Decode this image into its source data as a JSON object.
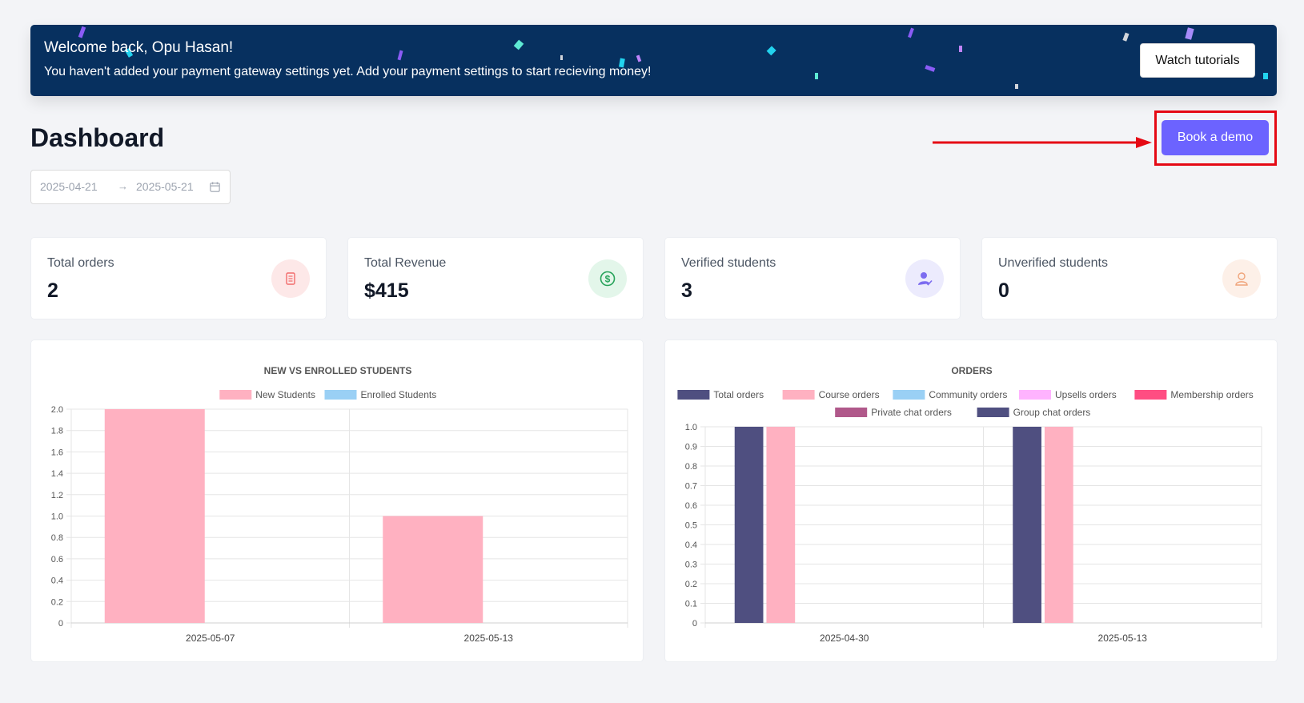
{
  "banner": {
    "greeting": "Welcome back, Opu Hasan!",
    "message": "You haven't added your payment gateway settings yet. Add your payment settings to start recieving money!",
    "watch_label": "Watch tutorials"
  },
  "page": {
    "title": "Dashboard",
    "demo_label": "Book a demo"
  },
  "date_range": {
    "start": "2025-04-21",
    "separator": "→",
    "end": "2025-05-21"
  },
  "stats": [
    {
      "label": "Total orders",
      "value": "2",
      "icon": "receipt-icon",
      "color": "#f26c6c"
    },
    {
      "label": "Total Revenue",
      "value": "$415",
      "icon": "dollar-icon",
      "color": "#27a35a"
    },
    {
      "label": "Verified students",
      "value": "3",
      "icon": "verified-user-icon",
      "color": "#7c6cf0"
    },
    {
      "label": "Unverified students",
      "value": "0",
      "icon": "user-icon",
      "color": "#f0a47a"
    }
  ],
  "colors": {
    "banner_bg": "#07305f",
    "accent": "#6c63ff",
    "highlight": "#e50914"
  },
  "chart_data": [
    {
      "type": "bar",
      "title": "NEW VS ENROLLED STUDENTS",
      "categories": [
        "2025-05-07",
        "2025-05-13"
      ],
      "series": [
        {
          "name": "New Students",
          "values": [
            2,
            1
          ],
          "color": "#ffb1c1"
        },
        {
          "name": "Enrolled Students",
          "values": [
            0,
            0
          ],
          "color": "#9ad0f5"
        }
      ],
      "ylim": [
        0,
        2
      ],
      "ystep": 0.2,
      "yticks": [
        "0",
        "0.2",
        "0.4",
        "0.6",
        "0.8",
        "1.0",
        "1.2",
        "1.4",
        "1.6",
        "1.8",
        "2.0"
      ],
      "legend": "top",
      "grid": true
    },
    {
      "type": "bar",
      "title": "ORDERS",
      "categories": [
        "2025-04-30",
        "2025-05-13"
      ],
      "series": [
        {
          "name": "Total orders",
          "values": [
            1,
            1
          ],
          "color": "#4f4f80"
        },
        {
          "name": "Course orders",
          "values": [
            1,
            1
          ],
          "color": "#ffb1c1"
        },
        {
          "name": "Community orders",
          "values": [
            0,
            0
          ],
          "color": "#9ad0f5"
        },
        {
          "name": "Upsells orders",
          "values": [
            0,
            0
          ],
          "color": "#ffb3ff"
        },
        {
          "name": "Membership orders",
          "values": [
            0,
            0
          ],
          "color": "#ff4d82"
        },
        {
          "name": "Private chat orders",
          "values": [
            0,
            0
          ],
          "color": "#b0588a"
        },
        {
          "name": "Group chat orders",
          "values": [
            0,
            0
          ],
          "color": "#4f4f80"
        }
      ],
      "ylim": [
        0,
        1
      ],
      "ystep": 0.1,
      "yticks": [
        "0",
        "0.1",
        "0.2",
        "0.3",
        "0.4",
        "0.5",
        "0.6",
        "0.7",
        "0.8",
        "0.9",
        "1.0"
      ],
      "legend": "top",
      "grid": true
    }
  ]
}
